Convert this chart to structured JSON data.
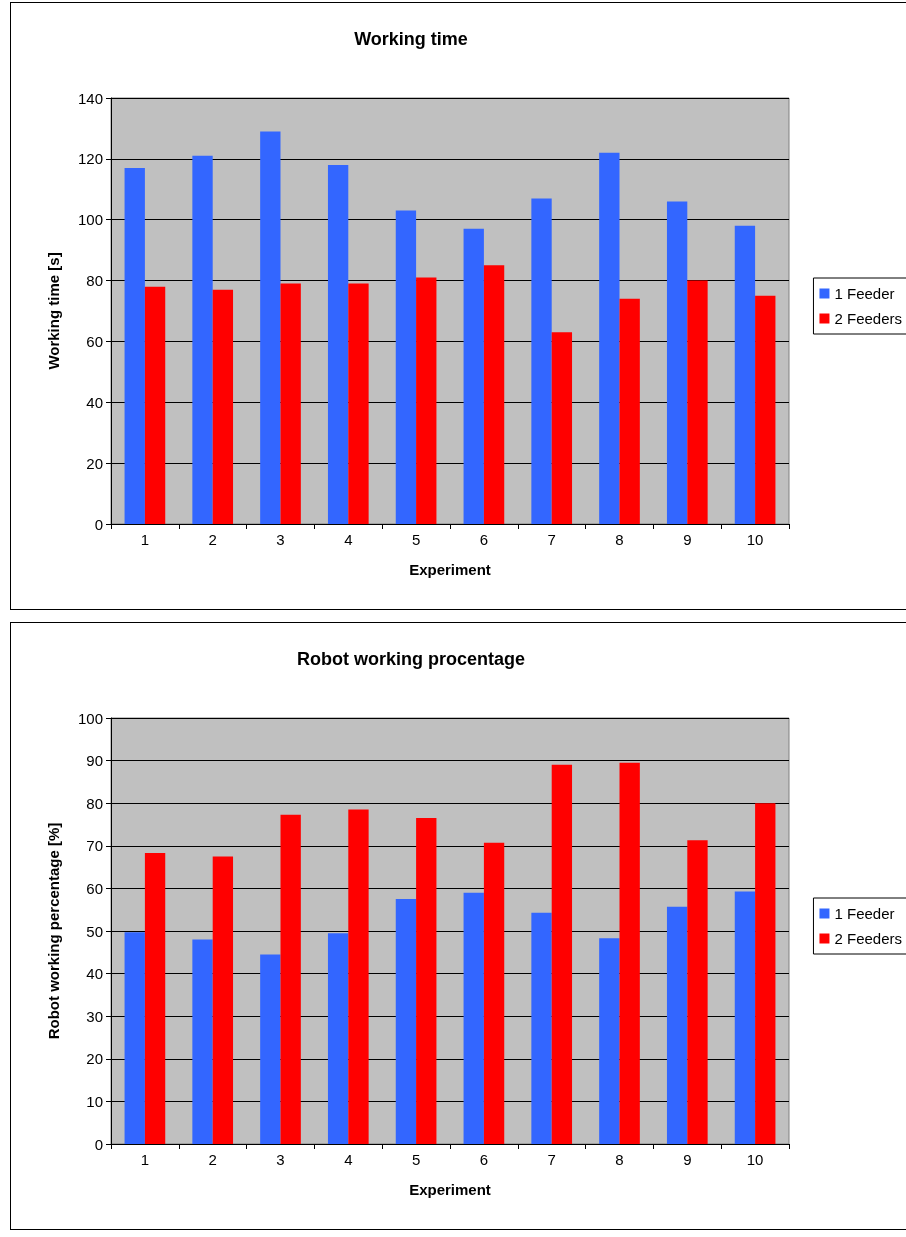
{
  "chart_data": [
    {
      "type": "bar",
      "title": "Working time",
      "xlabel": "Experiment",
      "ylabel": "Working time [s]",
      "categories": [
        "1",
        "2",
        "3",
        "4",
        "5",
        "6",
        "7",
        "8",
        "9",
        "10"
      ],
      "ylim": [
        0,
        140
      ],
      "yticks": [
        0,
        20,
        40,
        60,
        80,
        100,
        120,
        140
      ],
      "grid": "y",
      "legend": "right",
      "series": [
        {
          "name": "1 Feeder",
          "color": "#3366ff",
          "values": [
            117,
            121,
            129,
            118,
            103,
            97,
            107,
            122,
            106,
            98
          ]
        },
        {
          "name": "2 Feeders",
          "color": "#ff0000",
          "values": [
            78,
            77,
            79,
            79,
            81,
            85,
            63,
            74,
            80,
            75
          ]
        }
      ]
    },
    {
      "type": "bar",
      "title": "Robot working procentage",
      "xlabel": "Experiment",
      "ylabel": "Robot working percentage [%]",
      "categories": [
        "1",
        "2",
        "3",
        "4",
        "5",
        "6",
        "7",
        "8",
        "9",
        "10"
      ],
      "ylim": [
        0,
        100
      ],
      "yticks": [
        0,
        10,
        20,
        30,
        40,
        50,
        60,
        70,
        80,
        90,
        100
      ],
      "grid": "y",
      "legend": "right",
      "series": [
        {
          "name": "1 Feeder",
          "color": "#3366ff",
          "values": [
            49.7,
            48,
            44.5,
            49.5,
            57.5,
            59,
            54.3,
            48.3,
            55.7,
            59.3
          ]
        },
        {
          "name": "2 Feeders",
          "color": "#ff0000",
          "values": [
            68.3,
            67.5,
            77.3,
            78.5,
            76.5,
            70.7,
            89,
            89.5,
            71.3,
            80
          ]
        }
      ]
    }
  ]
}
